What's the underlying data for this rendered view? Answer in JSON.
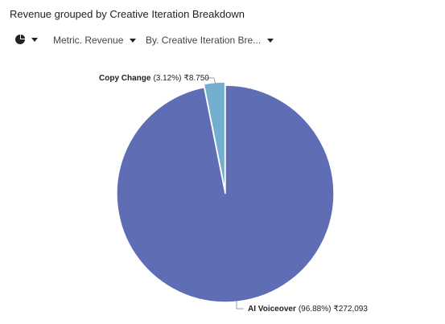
{
  "chart_data": {
    "type": "pie",
    "title": "Revenue grouped by Creative Iteration Breakdown",
    "categories": [
      "Copy Change",
      "AI Voiceover"
    ],
    "values": [
      8750,
      272093
    ],
    "value_labels": [
      "₹8.750",
      "₹272,093"
    ],
    "percent_labels": [
      "(3.12%)",
      "(96.88%)"
    ],
    "colors": [
      "#74aecf",
      "#5f6db5"
    ]
  },
  "controls": [
    "Metric. Revenue",
    "By. Creative Iteration Bre..."
  ]
}
